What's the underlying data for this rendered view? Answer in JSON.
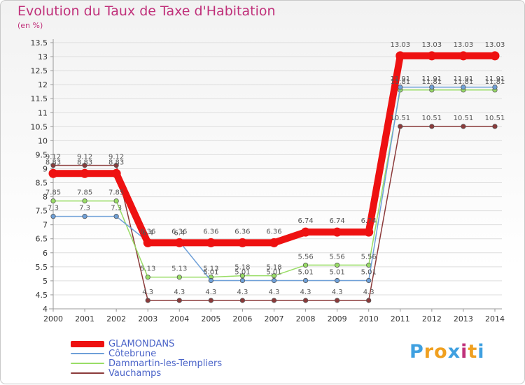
{
  "header": {
    "title": "Evolution du Taux de Taxe d'Habitation",
    "subtitle": "(en %)"
  },
  "brand": {
    "text": "Proxiti",
    "letter_colors": [
      "#3fa0e0",
      "#f0a020",
      "#f0a020",
      "#3fa0e0",
      "#c0307a",
      "#f0a020",
      "#3fa0e0"
    ]
  },
  "chart_data": {
    "type": "line",
    "x": [
      "2000",
      "2001",
      "2002",
      "2003",
      "2004",
      "2005",
      "2006",
      "2007",
      "2008",
      "2009",
      "2010",
      "2011",
      "2012",
      "2013",
      "2014"
    ],
    "ylim": [
      4,
      13.5
    ],
    "yticks": [
      "4",
      "4.5",
      "5",
      "5.5",
      "6",
      "6.5",
      "7",
      "7.5",
      "8",
      "8.5",
      "9",
      "9.5",
      "10",
      "10.5",
      "11",
      "11.5",
      "12",
      "12.5",
      "13",
      "13.5"
    ],
    "legend_position": "bottom-left",
    "series": [
      {
        "name": "GLAMONDANS",
        "color": "#ee1111",
        "values": [
          8.83,
          8.83,
          8.83,
          6.36,
          6.36,
          6.36,
          6.36,
          6.36,
          6.74,
          6.74,
          6.74,
          13.03,
          13.03,
          13.03,
          13.03
        ],
        "labels": [
          "8.83",
          "8.83",
          "8.83",
          "6.36",
          "6.36",
          "6.36",
          "6.36",
          "6.36",
          "6.74",
          "6.74",
          "6.74",
          "13.03",
          "13.03",
          "13.03",
          "13.03"
        ]
      },
      {
        "name": "Côtebrune",
        "color": "#6fa0d8",
        "values": [
          7.3,
          7.3,
          7.3,
          6.4,
          6.4,
          5.01,
          5.01,
          5.01,
          5.01,
          5.01,
          5.01,
          11.91,
          11.91,
          11.91,
          11.91
        ],
        "labels": [
          "7.3",
          "7.3",
          "7.3",
          "6.4",
          "6.4",
          "5.01",
          "5.01",
          "5.01",
          "5.01",
          "5.01",
          "5.01",
          "11.91",
          "11.91",
          "11.91",
          "11.91"
        ]
      },
      {
        "name": "Dammartin-les-Templiers",
        "color": "#99dd66",
        "values": [
          7.85,
          7.85,
          7.85,
          5.13,
          5.13,
          5.13,
          5.18,
          5.18,
          5.56,
          5.56,
          5.56,
          11.81,
          11.81,
          11.81,
          11.81
        ],
        "labels": [
          "7.85",
          "7.85",
          "7.85",
          "5.13",
          "5.13",
          "5.13",
          "5.18",
          "5.18",
          "5.56",
          "5.56",
          "5.56",
          "11.81",
          "11.81",
          "11.81",
          "11.81"
        ]
      },
      {
        "name": "Vauchamps",
        "color": "#8b3a3a",
        "values": [
          9.12,
          9.12,
          9.12,
          4.3,
          4.3,
          4.3,
          4.3,
          4.3,
          4.3,
          4.3,
          4.3,
          10.51,
          10.51,
          10.51,
          10.51
        ],
        "labels": [
          "9.12",
          "9.12",
          "9.12",
          "4.3",
          "4.3",
          "4.3",
          "4.3",
          "4.3",
          "4.3",
          "4.3",
          "4.3",
          "10.51",
          "10.51",
          "10.51",
          "10.51"
        ]
      }
    ]
  }
}
